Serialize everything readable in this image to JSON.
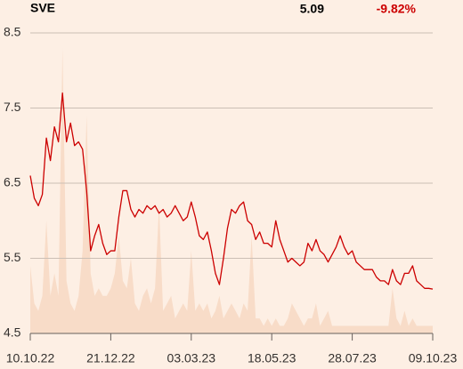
{
  "chart_data": {
    "type": "line",
    "title": "SVE",
    "last_price": "5.09",
    "change": "-9.82%",
    "change_color": "#cc0000",
    "categories": [
      "10.10.22",
      null,
      null,
      null,
      null,
      null,
      null,
      null,
      null,
      null,
      null,
      null,
      null,
      null,
      null,
      null,
      null,
      null,
      null,
      null,
      "21.12.22",
      null,
      null,
      null,
      null,
      null,
      null,
      null,
      null,
      null,
      null,
      null,
      null,
      null,
      null,
      null,
      null,
      null,
      null,
      null,
      "03.03.23",
      null,
      null,
      null,
      null,
      null,
      null,
      null,
      null,
      null,
      null,
      null,
      null,
      null,
      null,
      null,
      null,
      null,
      null,
      null,
      "18.05.23",
      null,
      null,
      null,
      null,
      null,
      null,
      null,
      null,
      null,
      null,
      null,
      null,
      null,
      null,
      null,
      null,
      null,
      null,
      null,
      "28.07.23",
      null,
      null,
      null,
      null,
      null,
      null,
      null,
      null,
      null,
      null,
      null,
      null,
      null,
      null,
      null,
      null,
      null,
      null,
      null,
      "09.10.23"
    ],
    "series": [
      {
        "color": "#cc0000",
        "values": [
          6.6,
          6.3,
          6.2,
          6.35,
          7.1,
          6.8,
          7.25,
          7.05,
          7.7,
          7.05,
          7.3,
          7.0,
          7.05,
          6.95,
          6.4,
          5.6,
          5.8,
          5.95,
          5.7,
          5.55,
          5.6,
          5.6,
          6.05,
          6.4,
          6.4,
          6.15,
          6.05,
          6.15,
          6.1,
          6.2,
          6.15,
          6.2,
          6.1,
          6.15,
          6.05,
          6.1,
          6.2,
          6.1,
          6.0,
          6.05,
          6.25,
          6.05,
          5.8,
          5.75,
          5.85,
          5.6,
          5.3,
          5.15,
          5.5,
          5.9,
          6.15,
          6.1,
          6.2,
          6.25,
          6.0,
          5.95,
          5.75,
          5.85,
          5.7,
          5.7,
          5.65,
          6.0,
          5.75,
          5.6,
          5.45,
          5.5,
          5.45,
          5.4,
          5.45,
          5.7,
          5.6,
          5.75,
          5.6,
          5.55,
          5.45,
          5.55,
          5.65,
          5.8,
          5.65,
          5.55,
          5.6,
          5.45,
          5.4,
          5.35,
          5.35,
          5.35,
          5.25,
          5.2,
          5.2,
          5.15,
          5.35,
          5.2,
          5.15,
          5.3,
          5.3,
          5.4,
          5.2,
          5.15,
          5.1,
          5.1,
          5.09
        ]
      }
    ],
    "volume": {
      "color": "#f8dcc8",
      "values": [
        5.4,
        4.9,
        4.8,
        5.0,
        6.0,
        5.0,
        5.3,
        5.0,
        8.3,
        5.2,
        4.9,
        4.8,
        5.0,
        5.6,
        7.4,
        5.3,
        5.0,
        5.1,
        5.0,
        5.0,
        5.1,
        5.3,
        5.8,
        5.2,
        5.1,
        5.5,
        4.9,
        4.8,
        5.0,
        5.1,
        4.9,
        5.1,
        6.2,
        4.8,
        4.9,
        5.0,
        4.7,
        4.8,
        4.9,
        4.8,
        5.6,
        4.8,
        4.9,
        4.8,
        4.9,
        4.7,
        4.8,
        5.0,
        4.7,
        4.8,
        4.9,
        4.8,
        4.7,
        4.9,
        4.8,
        5.8,
        4.7,
        4.7,
        4.6,
        4.7,
        4.6,
        4.7,
        4.6,
        4.6,
        4.7,
        4.9,
        4.8,
        4.7,
        4.6,
        4.7,
        4.7,
        4.9,
        4.6,
        4.7,
        4.8,
        4.6,
        4.6,
        4.6,
        4.6,
        4.6,
        4.6,
        4.6,
        4.6,
        4.6,
        4.6,
        4.6,
        4.6,
        4.6,
        4.6,
        4.6,
        5.1,
        4.7,
        4.6,
        4.8,
        4.6,
        4.7,
        4.6,
        4.6,
        4.6,
        4.6,
        4.6
      ]
    },
    "ylim": [
      4.5,
      8.5
    ],
    "yticks": [
      4.5,
      5.5,
      6.5,
      7.5,
      8.5
    ],
    "grid": true
  }
}
